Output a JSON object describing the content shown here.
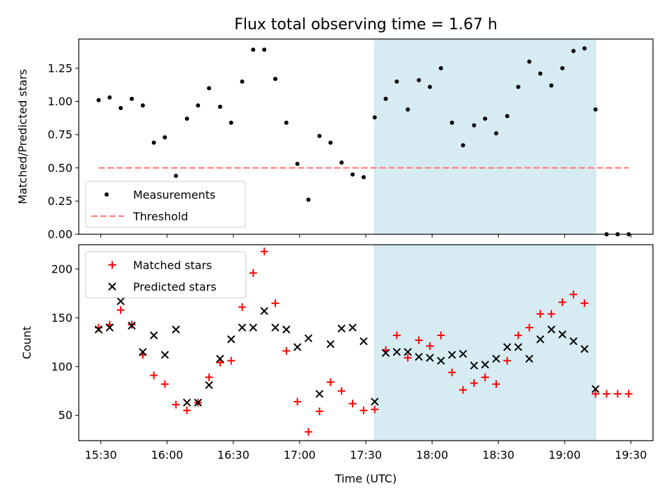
{
  "chart_data": {
    "title": "Flux total observing time = 1.67 h",
    "xlabel": "Time (UTC)",
    "x_ticks": [
      "15:30",
      "16:00",
      "16:30",
      "17:00",
      "17:30",
      "18:00",
      "18:30",
      "19:00",
      "19:30"
    ],
    "x_range": [
      "15:20",
      "19:40"
    ],
    "highlight_span": {
      "start": "17:34",
      "end": "19:14",
      "color": "#add8e6"
    },
    "panels": [
      {
        "type": "scatter",
        "ylabel": "Matched/Predicted stars",
        "ylim": [
          0.0,
          1.47
        ],
        "y_ticks": [
          "0.00",
          "0.25",
          "0.50",
          "0.75",
          "1.00",
          "1.25"
        ],
        "legend_position": "lower-left",
        "series": [
          {
            "name": "Measurements",
            "marker": "dot",
            "color": "#000000",
            "points": [
              [
                "15:29",
                1.01
              ],
              [
                "15:34",
                1.03
              ],
              [
                "15:39",
                0.95
              ],
              [
                "15:44",
                1.02
              ],
              [
                "15:49",
                0.97
              ],
              [
                "15:54",
                0.69
              ],
              [
                "15:59",
                0.73
              ],
              [
                "16:04",
                0.44
              ],
              [
                "16:09",
                0.87
              ],
              [
                "16:14",
                0.97
              ],
              [
                "16:19",
                1.1
              ],
              [
                "16:24",
                0.96
              ],
              [
                "16:29",
                0.84
              ],
              [
                "16:34",
                1.15
              ],
              [
                "16:39",
                1.39
              ],
              [
                "16:44",
                1.39
              ],
              [
                "16:49",
                1.17
              ],
              [
                "16:54",
                0.84
              ],
              [
                "16:59",
                0.53
              ],
              [
                "17:04",
                0.26
              ],
              [
                "17:09",
                0.74
              ],
              [
                "17:14",
                0.69
              ],
              [
                "17:19",
                0.54
              ],
              [
                "17:24",
                0.45
              ],
              [
                "17:29",
                0.43
              ],
              [
                "17:34",
                0.88
              ],
              [
                "17:39",
                1.02
              ],
              [
                "17:44",
                1.15
              ],
              [
                "17:49",
                0.94
              ],
              [
                "17:54",
                1.16
              ],
              [
                "17:59",
                1.11
              ],
              [
                "18:04",
                1.25
              ],
              [
                "18:09",
                0.84
              ],
              [
                "18:14",
                0.67
              ],
              [
                "18:19",
                0.82
              ],
              [
                "18:24",
                0.87
              ],
              [
                "18:29",
                0.76
              ],
              [
                "18:34",
                0.89
              ],
              [
                "18:39",
                1.11
              ],
              [
                "18:44",
                1.3
              ],
              [
                "18:49",
                1.21
              ],
              [
                "18:54",
                1.12
              ],
              [
                "18:59",
                1.25
              ],
              [
                "19:04",
                1.38
              ],
              [
                "19:09",
                1.4
              ],
              [
                "19:14",
                0.94
              ],
              [
                "19:19",
                0.0
              ],
              [
                "19:24",
                0.0
              ],
              [
                "19:29",
                0.0
              ]
            ]
          },
          {
            "name": "Threshold",
            "style": "dashed",
            "color": "#ff7f7f",
            "points": [
              [
                "15:29",
                0.5
              ],
              [
                "19:29",
                0.5
              ]
            ]
          }
        ]
      },
      {
        "type": "scatter",
        "ylabel": "Count",
        "ylim": [
          24,
          225
        ],
        "y_ticks": [
          "50",
          "100",
          "150",
          "200"
        ],
        "legend_position": "upper-left",
        "series": [
          {
            "name": "Matched stars",
            "marker": "plus",
            "color": "#ff0000",
            "points": [
              [
                "15:29",
                140
              ],
              [
                "15:34",
                143
              ],
              [
                "15:39",
                158
              ],
              [
                "15:44",
                143
              ],
              [
                "15:49",
                112
              ],
              [
                "15:54",
                91
              ],
              [
                "15:59",
                82
              ],
              [
                "16:04",
                61
              ],
              [
                "16:09",
                55
              ],
              [
                "16:14",
                63
              ],
              [
                "16:19",
                89
              ],
              [
                "16:24",
                104
              ],
              [
                "16:29",
                106
              ],
              [
                "16:34",
                161
              ],
              [
                "16:39",
                196
              ],
              [
                "16:44",
                218
              ],
              [
                "16:49",
                165
              ],
              [
                "16:54",
                116
              ],
              [
                "16:59",
                64
              ],
              [
                "17:04",
                33
              ],
              [
                "17:09",
                54
              ],
              [
                "17:14",
                84
              ],
              [
                "17:19",
                75
              ],
              [
                "17:24",
                62
              ],
              [
                "17:29",
                55
              ],
              [
                "17:34",
                56
              ],
              [
                "17:39",
                117
              ],
              [
                "17:44",
                132
              ],
              [
                "17:49",
                109
              ],
              [
                "17:54",
                127
              ],
              [
                "17:59",
                121
              ],
              [
                "18:04",
                132
              ],
              [
                "18:09",
                94
              ],
              [
                "18:14",
                76
              ],
              [
                "18:19",
                83
              ],
              [
                "18:24",
                89
              ],
              [
                "18:29",
                82
              ],
              [
                "18:34",
                106
              ],
              [
                "18:39",
                132
              ],
              [
                "18:44",
                140
              ],
              [
                "18:49",
                154
              ],
              [
                "18:54",
                154
              ],
              [
                "18:59",
                166
              ],
              [
                "19:04",
                174
              ],
              [
                "19:09",
                165
              ],
              [
                "19:14",
                72
              ],
              [
                "19:19",
                72
              ],
              [
                "19:24",
                72
              ],
              [
                "19:29",
                72
              ]
            ]
          },
          {
            "name": "Predicted stars",
            "marker": "x",
            "color": "#000000",
            "points": [
              [
                "15:29",
                138
              ],
              [
                "15:34",
                140
              ],
              [
                "15:39",
                167
              ],
              [
                "15:44",
                142
              ],
              [
                "15:49",
                115
              ],
              [
                "15:54",
                132
              ],
              [
                "15:59",
                112
              ],
              [
                "16:04",
                138
              ],
              [
                "16:09",
                63
              ],
              [
                "16:14",
                63
              ],
              [
                "16:19",
                81
              ],
              [
                "16:24",
                108
              ],
              [
                "16:29",
                128
              ],
              [
                "16:34",
                140
              ],
              [
                "16:39",
                140
              ],
              [
                "16:44",
                157
              ],
              [
                "16:49",
                140
              ],
              [
                "16:54",
                138
              ],
              [
                "16:59",
                120
              ],
              [
                "17:04",
                129
              ],
              [
                "17:09",
                72
              ],
              [
                "17:14",
                123
              ],
              [
                "17:19",
                139
              ],
              [
                "17:24",
                140
              ],
              [
                "17:29",
                126
              ],
              [
                "17:34",
                64
              ],
              [
                "17:39",
                114
              ],
              [
                "17:44",
                115
              ],
              [
                "17:49",
                115
              ],
              [
                "17:54",
                110
              ],
              [
                "17:59",
                109
              ],
              [
                "18:04",
                106
              ],
              [
                "18:09",
                112
              ],
              [
                "18:14",
                113
              ],
              [
                "18:19",
                101
              ],
              [
                "18:24",
                102
              ],
              [
                "18:29",
                108
              ],
              [
                "18:34",
                120
              ],
              [
                "18:39",
                120
              ],
              [
                "18:44",
                108
              ],
              [
                "18:49",
                128
              ],
              [
                "18:54",
                138
              ],
              [
                "18:59",
                133
              ],
              [
                "19:04",
                126
              ],
              [
                "19:09",
                118
              ],
              [
                "19:14",
                77
              ]
            ]
          }
        ]
      }
    ]
  }
}
